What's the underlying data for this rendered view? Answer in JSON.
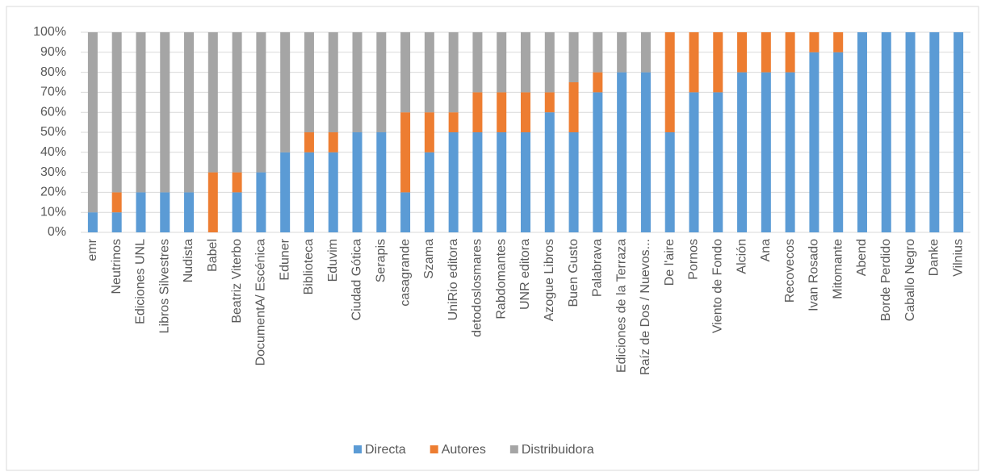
{
  "chart_data": {
    "type": "stacked_bar_100",
    "categories": [
      "emr",
      "Neutrinos",
      "Ediciones UNL",
      "Libros Silvestres",
      "Nudista",
      "Babel",
      "Beatriz Viterbo",
      "DocumentA/ Escénica",
      "Eduner",
      "Biblioteca",
      "Eduvim",
      "Ciudad Gótica",
      "Serapis",
      "casagrande",
      "Szama",
      "UniRio editora",
      "detodoslosmares",
      "Rabdomantes",
      "UNR editora",
      "Azogue Libros",
      "Buen Gusto",
      "Palabrava",
      "Ediciones de la Terraza",
      "Raíz de Dos / Nuevos...",
      "De l'aire",
      "Pornos",
      "Viento de Fondo",
      "Alción",
      "Ana",
      "Recovecos",
      "Ivan Rosado",
      "Mitomante",
      "Abend",
      "Borde Perdido",
      "Caballo Negro",
      "Danke",
      "Vilnius"
    ],
    "series": [
      {
        "name": "Directa",
        "color": "#5b9bd5",
        "values": [
          10,
          10,
          20,
          20,
          20,
          0,
          20,
          30,
          40,
          40,
          40,
          50,
          50,
          20,
          40,
          50,
          50,
          50,
          50,
          60,
          50,
          70,
          80,
          80,
          50,
          70,
          70,
          80,
          80,
          80,
          90,
          90,
          100,
          100,
          100,
          100,
          100
        ]
      },
      {
        "name": "Autores",
        "color": "#ed7d31",
        "values": [
          0,
          10,
          0,
          0,
          0,
          30,
          10,
          0,
          0,
          10,
          10,
          0,
          0,
          40,
          20,
          10,
          20,
          20,
          20,
          10,
          25,
          10,
          0,
          0,
          50,
          30,
          30,
          20,
          20,
          20,
          10,
          10,
          0,
          0,
          0,
          0,
          0
        ]
      },
      {
        "name": "Distribuidora",
        "color": "#a5a5a5",
        "values": [
          90,
          80,
          80,
          80,
          80,
          70,
          70,
          70,
          60,
          50,
          50,
          50,
          50,
          40,
          40,
          40,
          30,
          30,
          30,
          30,
          25,
          20,
          20,
          20,
          0,
          0,
          0,
          0,
          0,
          0,
          0,
          0,
          0,
          0,
          0,
          0,
          0
        ]
      }
    ],
    "ylim": [
      0,
      100
    ],
    "yticks": [
      {
        "value": 0,
        "label": "0%"
      },
      {
        "value": 10,
        "label": "10%"
      },
      {
        "value": 20,
        "label": "20%"
      },
      {
        "value": 30,
        "label": "30%"
      },
      {
        "value": 40,
        "label": "40%"
      },
      {
        "value": 50,
        "label": "50%"
      },
      {
        "value": 60,
        "label": "60%"
      },
      {
        "value": 70,
        "label": "70%"
      },
      {
        "value": 80,
        "label": "80%"
      },
      {
        "value": 90,
        "label": "90%"
      },
      {
        "value": 100,
        "label": "100%"
      }
    ],
    "grid": true,
    "legend": "bottom"
  }
}
